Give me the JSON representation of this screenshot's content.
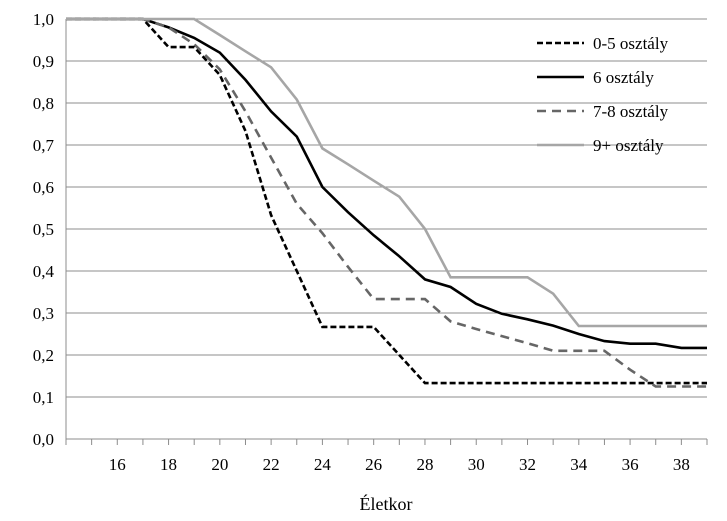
{
  "chart_data": {
    "type": "line",
    "xlabel": "Életkor",
    "ylabel": "",
    "xlim": [
      14,
      39
    ],
    "ylim": [
      0,
      1
    ],
    "grid": true,
    "legend_position": "top-right",
    "x_ticks": [
      16,
      18,
      20,
      22,
      24,
      26,
      28,
      30,
      32,
      34,
      36,
      38
    ],
    "y_ticks": [
      "0,0",
      "0,1",
      "0,2",
      "0,3",
      "0,4",
      "0,5",
      "0,6",
      "0,7",
      "0,8",
      "0,9",
      "1,0"
    ],
    "series": [
      {
        "name": "0-5 osztály",
        "color": "#000000",
        "style": "dashed",
        "x": [
          14,
          17,
          18,
          19,
          20,
          21,
          22,
          23,
          24,
          25,
          26,
          27,
          28,
          29,
          30,
          31,
          32,
          33,
          34,
          35,
          36,
          37,
          38,
          39
        ],
        "y": [
          1.0,
          1.0,
          0.933,
          0.933,
          0.867,
          0.733,
          0.533,
          0.4,
          0.267,
          0.267,
          0.267,
          0.2,
          0.133,
          0.133,
          0.133,
          0.133,
          0.133,
          0.133,
          0.133,
          0.133,
          0.133,
          0.133,
          0.133,
          0.133
        ]
      },
      {
        "name": "6 osztály",
        "color": "#000000",
        "style": "solid",
        "x": [
          14,
          17,
          18,
          19,
          20,
          21,
          22,
          23,
          24,
          25,
          26,
          27,
          28,
          29,
          30,
          31,
          32,
          33,
          34,
          35,
          36,
          37,
          38,
          39
        ],
        "y": [
          1.0,
          1.0,
          0.98,
          0.955,
          0.92,
          0.855,
          0.78,
          0.72,
          0.6,
          0.54,
          0.485,
          0.435,
          0.38,
          0.362,
          0.322,
          0.298,
          0.285,
          0.27,
          0.25,
          0.233,
          0.227,
          0.227,
          0.217,
          0.217
        ]
      },
      {
        "name": "7-8 osztály",
        "color": "#666666",
        "style": "dashed",
        "x": [
          14,
          17,
          18,
          19,
          20,
          21,
          22,
          23,
          24,
          25,
          26,
          27,
          28,
          29,
          30,
          31,
          32,
          33,
          34,
          35,
          36,
          37,
          38,
          39
        ],
        "y": [
          1.0,
          1.0,
          0.98,
          0.94,
          0.88,
          0.78,
          0.67,
          0.56,
          0.49,
          0.41,
          0.333,
          0.333,
          0.333,
          0.28,
          0.262,
          0.245,
          0.228,
          0.21,
          0.21,
          0.21,
          0.165,
          0.125,
          0.125,
          0.125
        ]
      },
      {
        "name": "9+ osztály",
        "color": "#a6a6a6",
        "style": "solid",
        "x": [
          14,
          17,
          18,
          19,
          20,
          21,
          22,
          23,
          24,
          25,
          26,
          27,
          28,
          29,
          30,
          31,
          32,
          33,
          34,
          35,
          36,
          37,
          38,
          39
        ],
        "y": [
          1.0,
          1.0,
          1.0,
          1.0,
          0.962,
          0.923,
          0.885,
          0.808,
          0.692,
          0.654,
          0.615,
          0.577,
          0.5,
          0.385,
          0.385,
          0.385,
          0.385,
          0.346,
          0.269,
          0.269,
          0.269,
          0.269,
          0.269,
          0.269
        ]
      }
    ]
  }
}
